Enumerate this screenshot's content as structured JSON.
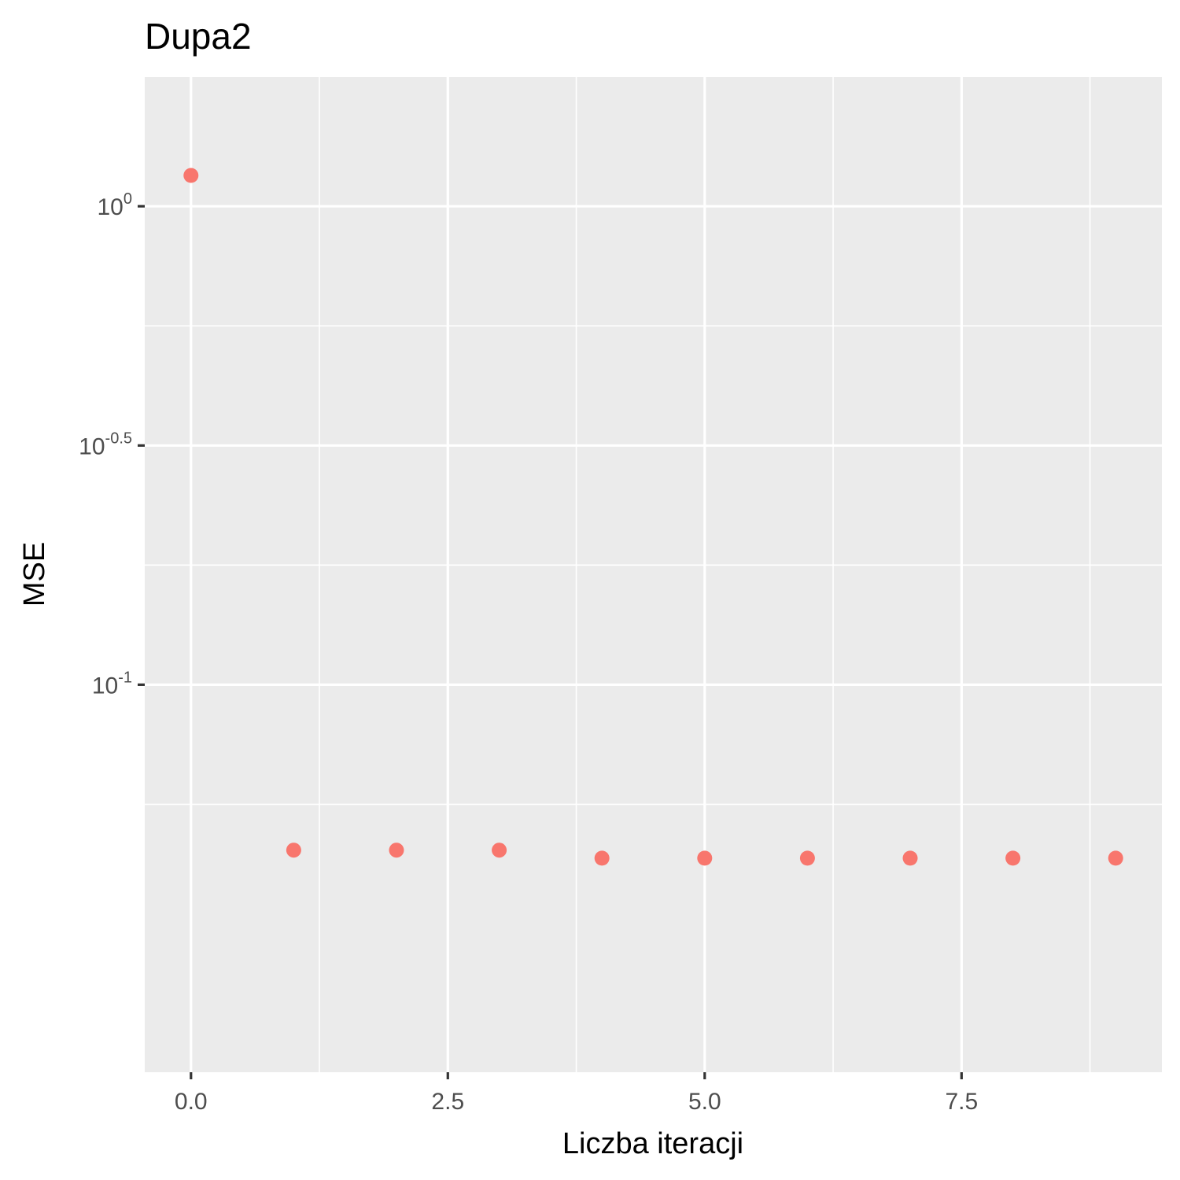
{
  "chart_data": {
    "type": "scatter",
    "title": "Dupa2",
    "xlabel": "Liczba iteracji",
    "ylabel": "MSE",
    "x_scale": "linear",
    "y_scale": "log10",
    "xlim": [
      -0.45,
      9.45
    ],
    "ylim_log10": [
      -1.81,
      0.27
    ],
    "x_ticks": [
      {
        "value": 0.0,
        "label": "0.0"
      },
      {
        "value": 2.5,
        "label": "2.5"
      },
      {
        "value": 5.0,
        "label": "5.0"
      },
      {
        "value": 7.5,
        "label": "7.5"
      }
    ],
    "y_ticks": [
      {
        "log10": 0,
        "base": "10",
        "exp": "0"
      },
      {
        "log10": -0.5,
        "base": "10",
        "exp": "-0.5"
      },
      {
        "log10": -1,
        "base": "10",
        "exp": "-1"
      }
    ],
    "grid": true,
    "legend": "none",
    "point_color": "#F8766D",
    "panel_color": "#EBEBEB",
    "grid_color": "#FFFFFF",
    "x": [
      0,
      1,
      2,
      3,
      4,
      5,
      6,
      7,
      8,
      9
    ],
    "y": [
      1.16,
      0.0451,
      0.0451,
      0.0451,
      0.0434,
      0.0434,
      0.0434,
      0.0434,
      0.0434,
      0.0434
    ]
  }
}
